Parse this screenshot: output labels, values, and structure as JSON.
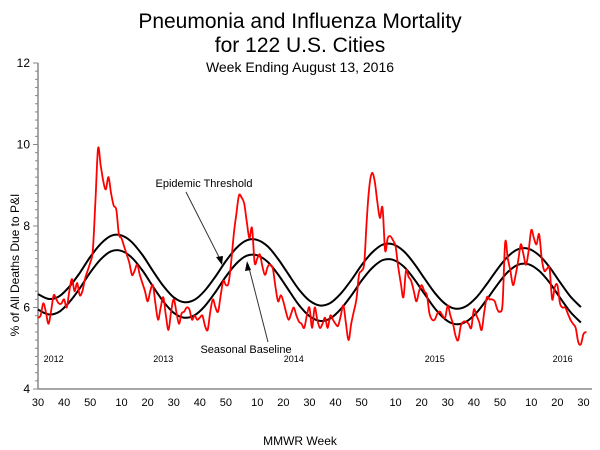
{
  "chart_data": {
    "type": "line",
    "title": "Pneumonia and Influenza Mortality",
    "title_line2": "for 122 U.S. Cities",
    "subtitle": "Week Ending August 13, 2016",
    "xlabel": "MMWR Week",
    "ylabel": "% of All Deaths Due to P&I",
    "ylim": [
      4,
      12
    ],
    "y_ticks": [
      "4",
      "6",
      "8",
      "10",
      "12"
    ],
    "x_ticks": [
      "30",
      "40",
      "50",
      "10",
      "20",
      "30",
      "40",
      "50",
      "10",
      "20",
      "30",
      "40",
      "50",
      "10",
      "20",
      "30",
      "40",
      "50",
      "10",
      "20",
      "30"
    ],
    "year_labels": [
      "2012",
      "2013",
      "2014",
      "2015",
      "2016"
    ],
    "grid": false,
    "colors": {
      "observed": "#ff0000",
      "baseline": "#000000",
      "threshold": "#000000"
    },
    "annotations": {
      "threshold": "Epidemic Threshold",
      "baseline": "Seasonal Baseline"
    },
    "series": [
      {
        "key": "observed",
        "values": [
          5.75,
          5.8,
          6.1,
          5.9,
          5.6,
          5.9,
          6.3,
          6.2,
          6.1,
          6.1,
          6.2,
          6.0,
          6.4,
          6.7,
          6.4,
          6.6,
          6.3,
          6.4,
          6.7,
          6.9,
          7.1,
          7.4,
          8.6,
          9.9,
          9.5,
          9.1,
          8.9,
          9.2,
          8.8,
          8.5,
          8.4,
          7.8,
          7.7,
          7.5,
          7.3,
          7.1,
          6.8,
          6.9,
          7.05,
          6.8,
          6.6,
          6.4,
          6.15,
          6.4,
          6.55,
          6.1,
          5.7,
          6.0,
          6.25,
          5.8,
          5.45,
          5.9,
          6.2,
          5.9,
          5.6,
          5.85,
          5.9,
          6.0,
          5.95,
          5.7,
          5.8,
          5.7,
          5.75,
          5.8,
          5.55,
          5.45,
          5.9,
          6.2,
          6.0,
          5.9,
          6.3,
          6.65,
          6.55,
          6.6,
          7.1,
          7.8,
          8.3,
          8.75,
          8.7,
          8.55,
          8.1,
          7.7,
          7.95,
          7.1,
          7.2,
          7.3,
          7.0,
          6.8,
          7.0,
          7.05,
          6.95,
          6.5,
          6.15,
          6.3,
          6.15,
          5.9,
          5.7,
          5.85,
          6.0,
          5.8,
          5.65,
          5.6,
          5.5,
          5.8,
          6.0,
          5.5,
          6.0,
          5.7,
          5.5,
          5.6,
          5.75,
          5.5,
          5.8,
          5.7,
          5.6,
          5.55,
          5.8,
          6.05,
          5.6,
          5.2,
          5.6,
          5.9,
          6.2,
          6.8,
          6.9,
          7.1,
          8.2,
          9.0,
          9.3,
          9.1,
          8.6,
          8.2,
          8.45,
          7.4,
          7.7,
          7.75,
          7.65,
          7.5,
          7.0,
          6.6,
          6.25,
          6.9,
          6.75,
          6.65,
          6.4,
          6.15,
          6.4,
          6.55,
          6.4,
          6.3,
          5.85,
          5.7,
          5.7,
          5.85,
          5.9,
          5.8,
          5.75,
          6.05,
          5.8,
          5.6,
          5.3,
          5.2,
          5.55,
          5.65,
          5.65,
          5.6,
          5.5,
          5.95,
          5.8,
          5.65,
          5.45,
          5.9,
          6.25,
          6.2,
          6.2,
          6.15,
          5.95,
          5.9,
          6.1,
          7.6,
          7.2,
          6.9,
          6.55,
          6.8,
          7.15,
          7.55,
          7.3,
          7.05,
          7.4,
          7.9,
          7.7,
          7.55,
          7.8,
          7.2,
          6.9,
          6.95,
          6.95,
          6.2,
          6.5,
          6.55,
          6.1,
          6.0,
          6.0,
          5.85,
          5.7,
          5.6,
          5.5,
          5.15,
          5.1,
          5.35,
          5.4
        ]
      },
      {
        "key": "baseline",
        "values": [
          5.95,
          5.83,
          5.89,
          6.13,
          6.47,
          6.86,
          7.18,
          7.38,
          7.39,
          7.22,
          6.91,
          6.52,
          6.15,
          5.87,
          5.75,
          5.81,
          6.04,
          6.38,
          6.76,
          7.08,
          7.27,
          7.28,
          7.12,
          6.81,
          6.43,
          6.06,
          5.79,
          5.67,
          5.73,
          5.96,
          6.29,
          6.66,
          6.97,
          7.16,
          7.17,
          7.01,
          6.71,
          6.34,
          5.98,
          5.71,
          5.59,
          5.65,
          5.87,
          6.2,
          6.56,
          6.87,
          7.05,
          7.06,
          6.9,
          6.61,
          6.24,
          5.89,
          5.63
        ]
      },
      {
        "key": "threshold",
        "values": [
          6.33,
          6.21,
          6.27,
          6.51,
          6.85,
          7.24,
          7.56,
          7.76,
          7.77,
          7.6,
          7.29,
          6.9,
          6.53,
          6.25,
          6.13,
          6.19,
          6.42,
          6.76,
          7.14,
          7.46,
          7.65,
          7.66,
          7.5,
          7.19,
          6.81,
          6.44,
          6.17,
          6.05,
          6.11,
          6.34,
          6.67,
          7.04,
          7.35,
          7.54,
          7.55,
          7.39,
          7.09,
          6.72,
          6.36,
          6.09,
          5.97,
          6.03,
          6.25,
          6.58,
          6.94,
          7.25,
          7.43,
          7.44,
          7.28,
          6.99,
          6.62,
          6.27,
          6.01
        ]
      }
    ]
  }
}
